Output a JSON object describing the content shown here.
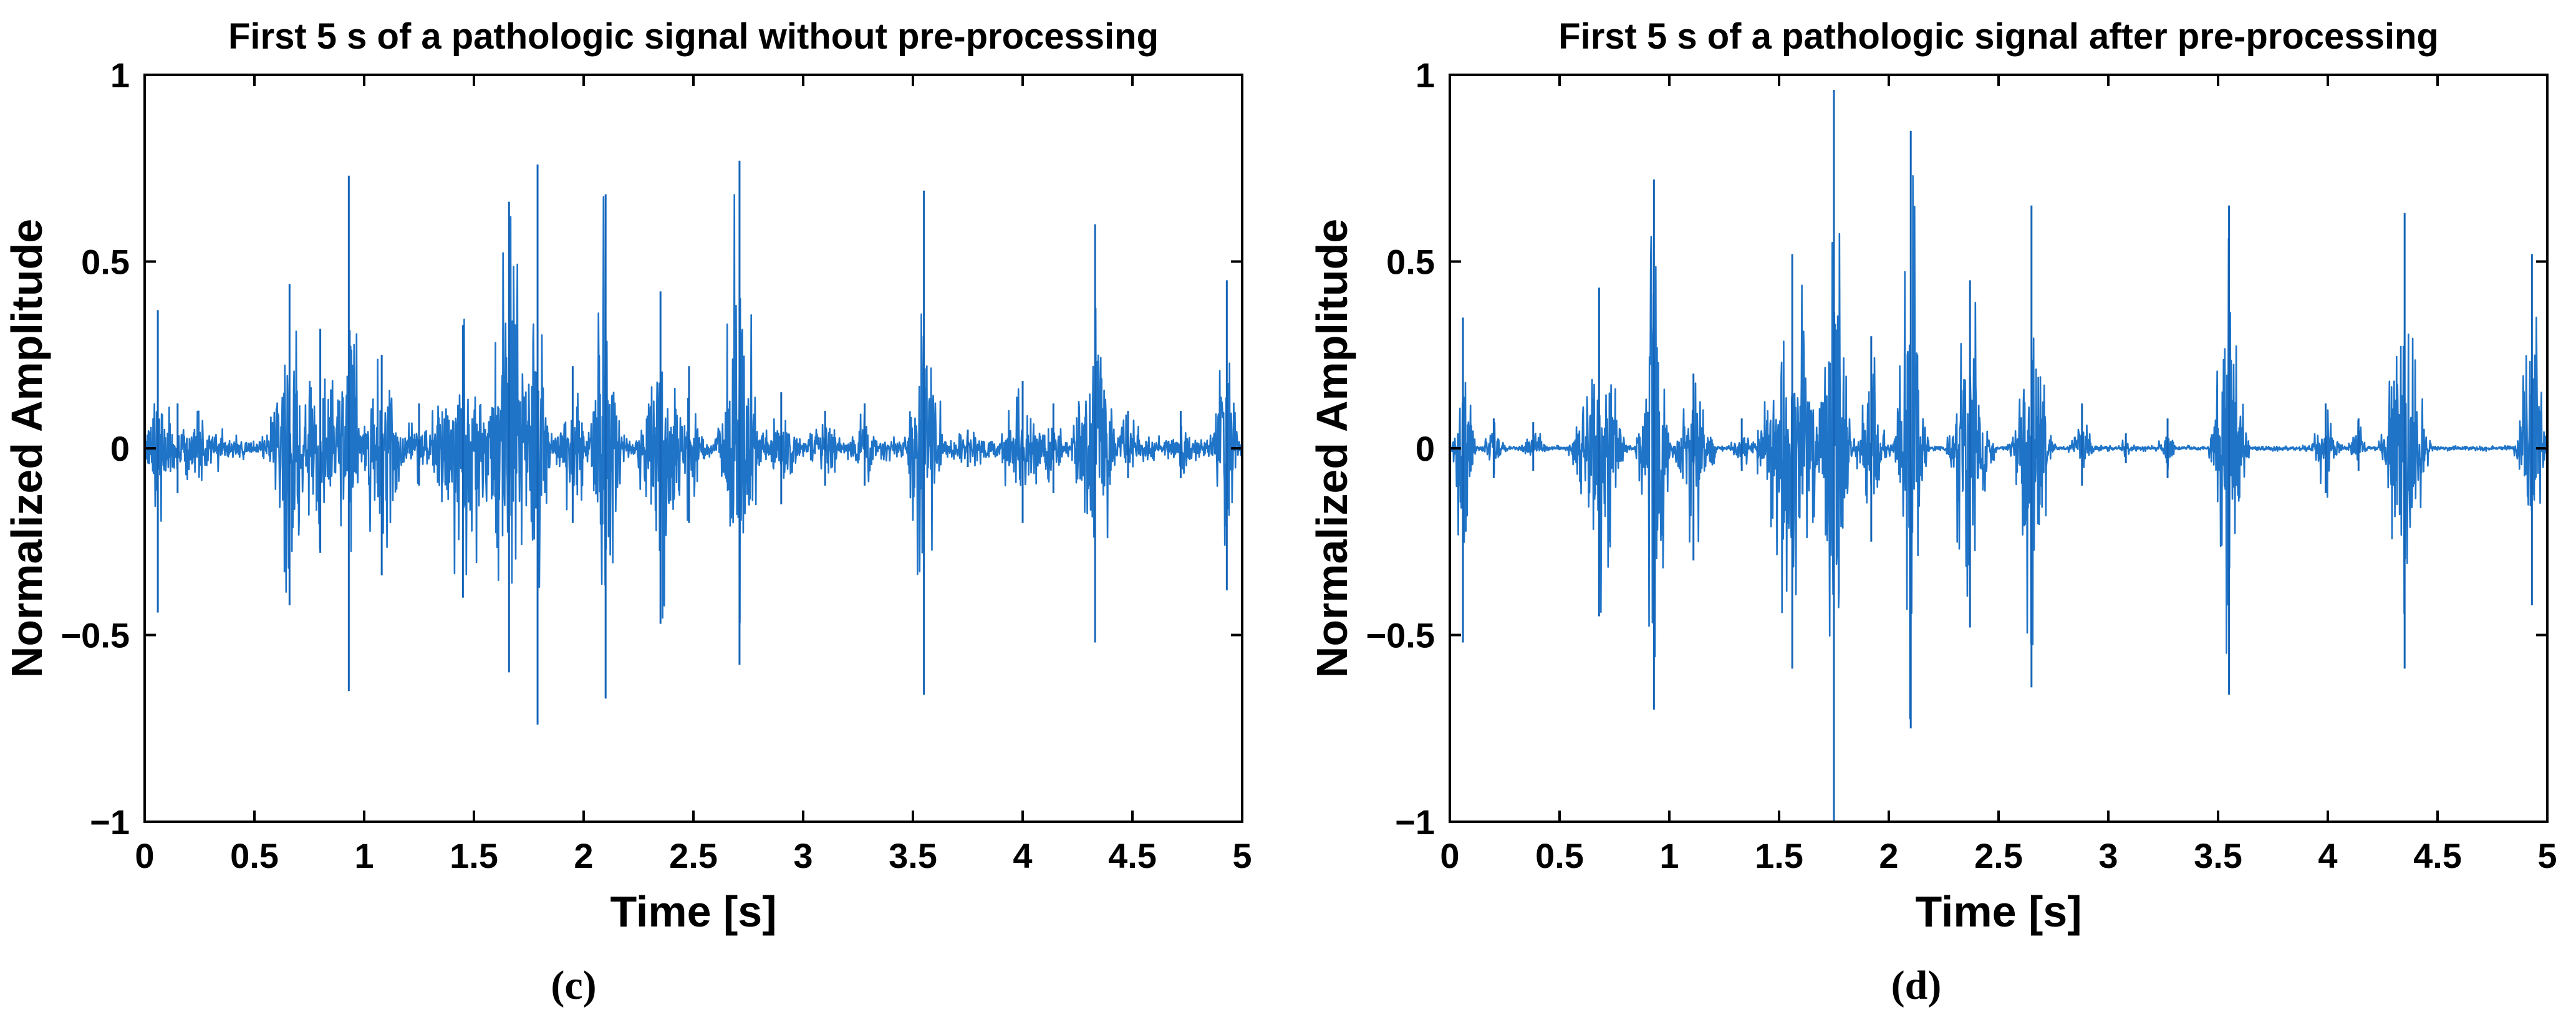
{
  "chart_data": [
    {
      "type": "line",
      "panel": "c",
      "caption": "(c)",
      "title": "First 5 s of a pathologic signal without pre-processing",
      "xlabel": "Time [s]",
      "ylabel": "Normalized Amplitude",
      "xlim": [
        0,
        5
      ],
      "ylim": [
        -1,
        1
      ],
      "xticks": [
        0,
        0.5,
        1,
        1.5,
        2,
        2.5,
        3,
        3.5,
        4,
        4.5,
        5
      ],
      "xtick_labels": [
        "0",
        "0.5",
        "1",
        "1.5",
        "2",
        "2.5",
        "3",
        "3.5",
        "4",
        "4.5",
        "5"
      ],
      "yticks": [
        -1,
        -0.5,
        0,
        0.5,
        1
      ],
      "ytick_labels": [
        "−1",
        "−0.5",
        "0",
        "0.5",
        "1"
      ],
      "grid": false,
      "line_color": "#1f74c8",
      "noise_floor": 0.035,
      "bursts": [
        {
          "t": 0.06,
          "dur": 0.04,
          "peak": 0.37,
          "trough": -0.44
        },
        {
          "t": 0.15,
          "dur": 0.34,
          "peak": 0.12,
          "trough": -0.12
        },
        {
          "t": 0.66,
          "dur": 0.1,
          "peak": 0.44,
          "trough": -0.42
        },
        {
          "t": 0.8,
          "dur": 0.12,
          "peak": 0.32,
          "trough": -0.28
        },
        {
          "t": 0.93,
          "dur": 0.06,
          "peak": 0.73,
          "trough": -0.65
        },
        {
          "t": 1.08,
          "dur": 0.14,
          "peak": 0.25,
          "trough": -0.34
        },
        {
          "t": 1.25,
          "dur": 0.1,
          "peak": 0.12,
          "trough": -0.1
        },
        {
          "t": 1.45,
          "dur": 0.2,
          "peak": 0.33,
          "trough": -0.4
        },
        {
          "t": 1.66,
          "dur": 0.1,
          "peak": 0.66,
          "trough": -0.6
        },
        {
          "t": 1.79,
          "dur": 0.06,
          "peak": 0.76,
          "trough": -0.74
        },
        {
          "t": 1.95,
          "dur": 0.1,
          "peak": 0.22,
          "trough": -0.2
        },
        {
          "t": 2.1,
          "dur": 0.08,
          "peak": 0.68,
          "trough": -0.67
        },
        {
          "t": 2.35,
          "dur": 0.12,
          "peak": 0.42,
          "trough": -0.47
        },
        {
          "t": 2.48,
          "dur": 0.08,
          "peak": 0.22,
          "trough": -0.2
        },
        {
          "t": 2.71,
          "dur": 0.1,
          "peak": 0.77,
          "trough": -0.58
        },
        {
          "t": 2.9,
          "dur": 0.1,
          "peak": 0.15,
          "trough": -0.15
        },
        {
          "t": 3.1,
          "dur": 0.12,
          "peak": 0.1,
          "trough": -0.1
        },
        {
          "t": 3.28,
          "dur": 0.08,
          "peak": 0.12,
          "trough": -0.1
        },
        {
          "t": 3.55,
          "dur": 0.08,
          "peak": 0.69,
          "trough": -0.66
        },
        {
          "t": 3.75,
          "dur": 0.22,
          "peak": 0.05,
          "trough": -0.05
        },
        {
          "t": 4.0,
          "dur": 0.14,
          "peak": 0.18,
          "trough": -0.2
        },
        {
          "t": 4.14,
          "dur": 0.06,
          "peak": 0.12,
          "trough": -0.12
        },
        {
          "t": 4.33,
          "dur": 0.1,
          "peak": 0.6,
          "trough": -0.52
        },
        {
          "t": 4.48,
          "dur": 0.1,
          "peak": 0.1,
          "trough": -0.08
        },
        {
          "t": 4.72,
          "dur": 0.1,
          "peak": 0.1,
          "trough": -0.08
        },
        {
          "t": 4.93,
          "dur": 0.07,
          "peak": 0.45,
          "trough": -0.38
        }
      ]
    },
    {
      "type": "line",
      "panel": "d",
      "caption": "(d)",
      "title": "First 5 s of a pathologic signal after pre-processing",
      "xlabel": "Time [s]",
      "ylabel": "Normalized Amplitude",
      "xlim": [
        0,
        5
      ],
      "ylim": [
        -1,
        1
      ],
      "xticks": [
        0,
        0.5,
        1,
        1.5,
        2,
        2.5,
        3,
        3.5,
        4,
        4.5,
        5
      ],
      "xtick_labels": [
        "0",
        "0.5",
        "1",
        "1.5",
        "2",
        "2.5",
        "3",
        "3.5",
        "4",
        "4.5",
        "5"
      ],
      "yticks": [
        -1,
        -0.5,
        0,
        0.5,
        1
      ],
      "ytick_labels": [
        "−1",
        "−0.5",
        "0",
        "0.5",
        "1"
      ],
      "grid": false,
      "line_color": "#1f74c8",
      "noise_floor": 0.008,
      "bursts": [
        {
          "t": 0.06,
          "dur": 0.05,
          "peak": 0.35,
          "trough": -0.52
        },
        {
          "t": 0.2,
          "dur": 0.06,
          "peak": 0.08,
          "trough": -0.08
        },
        {
          "t": 0.38,
          "dur": 0.06,
          "peak": 0.07,
          "trough": -0.06
        },
        {
          "t": 0.68,
          "dur": 0.12,
          "peak": 0.43,
          "trough": -0.45
        },
        {
          "t": 0.93,
          "dur": 0.07,
          "peak": 0.72,
          "trough": -0.7
        },
        {
          "t": 1.11,
          "dur": 0.1,
          "peak": 0.2,
          "trough": -0.3
        },
        {
          "t": 1.33,
          "dur": 0.06,
          "peak": 0.08,
          "trough": -0.06
        },
        {
          "t": 1.56,
          "dur": 0.16,
          "peak": 0.52,
          "trough": -0.59
        },
        {
          "t": 1.75,
          "dur": 0.07,
          "peak": 0.96,
          "trough": -1.0
        },
        {
          "t": 1.92,
          "dur": 0.08,
          "peak": 0.3,
          "trough": -0.25
        },
        {
          "t": 2.1,
          "dur": 0.07,
          "peak": 0.85,
          "trough": -0.75
        },
        {
          "t": 2.37,
          "dur": 0.1,
          "peak": 0.45,
          "trough": -0.48
        },
        {
          "t": 2.65,
          "dur": 0.09,
          "peak": 0.65,
          "trough": -0.64
        },
        {
          "t": 2.88,
          "dur": 0.06,
          "peak": 0.12,
          "trough": -0.1
        },
        {
          "t": 3.08,
          "dur": 0.03,
          "peak": 0.04,
          "trough": -0.04
        },
        {
          "t": 3.27,
          "dur": 0.05,
          "peak": 0.08,
          "trough": -0.08
        },
        {
          "t": 3.55,
          "dur": 0.08,
          "peak": 0.65,
          "trough": -0.66
        },
        {
          "t": 3.99,
          "dur": 0.07,
          "peak": 0.12,
          "trough": -0.12
        },
        {
          "t": 4.14,
          "dur": 0.05,
          "peak": 0.08,
          "trough": -0.06
        },
        {
          "t": 4.35,
          "dur": 0.1,
          "peak": 0.63,
          "trough": -0.59
        },
        {
          "t": 4.93,
          "dur": 0.07,
          "peak": 0.52,
          "trough": -0.42
        }
      ]
    }
  ]
}
